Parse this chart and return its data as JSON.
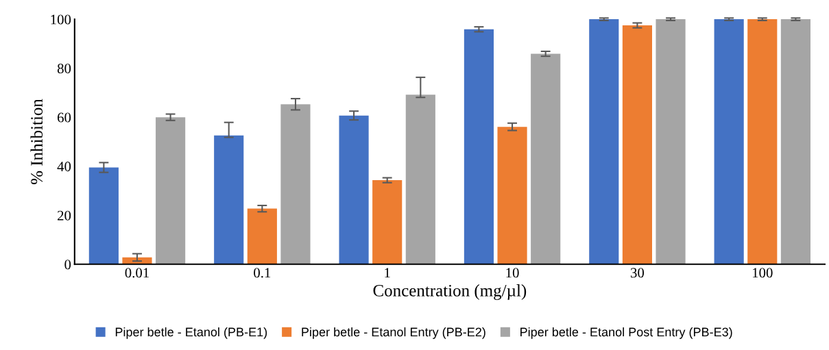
{
  "chart_data": {
    "type": "bar",
    "xlabel": "Concentration (mg/µl)",
    "ylabel": "% Inhibition",
    "categories": [
      "0.01",
      "0.1",
      "1",
      "10",
      "30",
      "100"
    ],
    "series": [
      {
        "name": "Piper betle - Etanol (PB-E1)",
        "color": "#4472c4",
        "values": [
          39.5,
          52.6,
          60.7,
          95.9,
          100,
          100
        ],
        "errors": [
          2,
          [
            51.8,
            57.9
          ],
          1.8,
          1,
          0.5,
          0.5
        ]
      },
      {
        "name": "Piper betle - Etanol Entry (PB-E2)",
        "color": "#ed7d31",
        "values": [
          2.8,
          22.7,
          34.3,
          56.1,
          97.5,
          100
        ],
        "errors": [
          1.5,
          1.3,
          1,
          1.5,
          1,
          0.5
        ]
      },
      {
        "name": "Piper betle - Etanol Post Entry (PB-E3)",
        "color": "#a5a5a5",
        "values": [
          60.0,
          65.3,
          69.2,
          85.9,
          100,
          100
        ],
        "errors": [
          1.3,
          2.3,
          [
            68.1,
            76.3
          ],
          1,
          0.5,
          0.5
        ]
      }
    ],
    "ylim": [
      0,
      100
    ],
    "yticks": [
      0,
      20,
      40,
      60,
      80,
      100
    ],
    "grid": false,
    "legend": "bottom"
  }
}
